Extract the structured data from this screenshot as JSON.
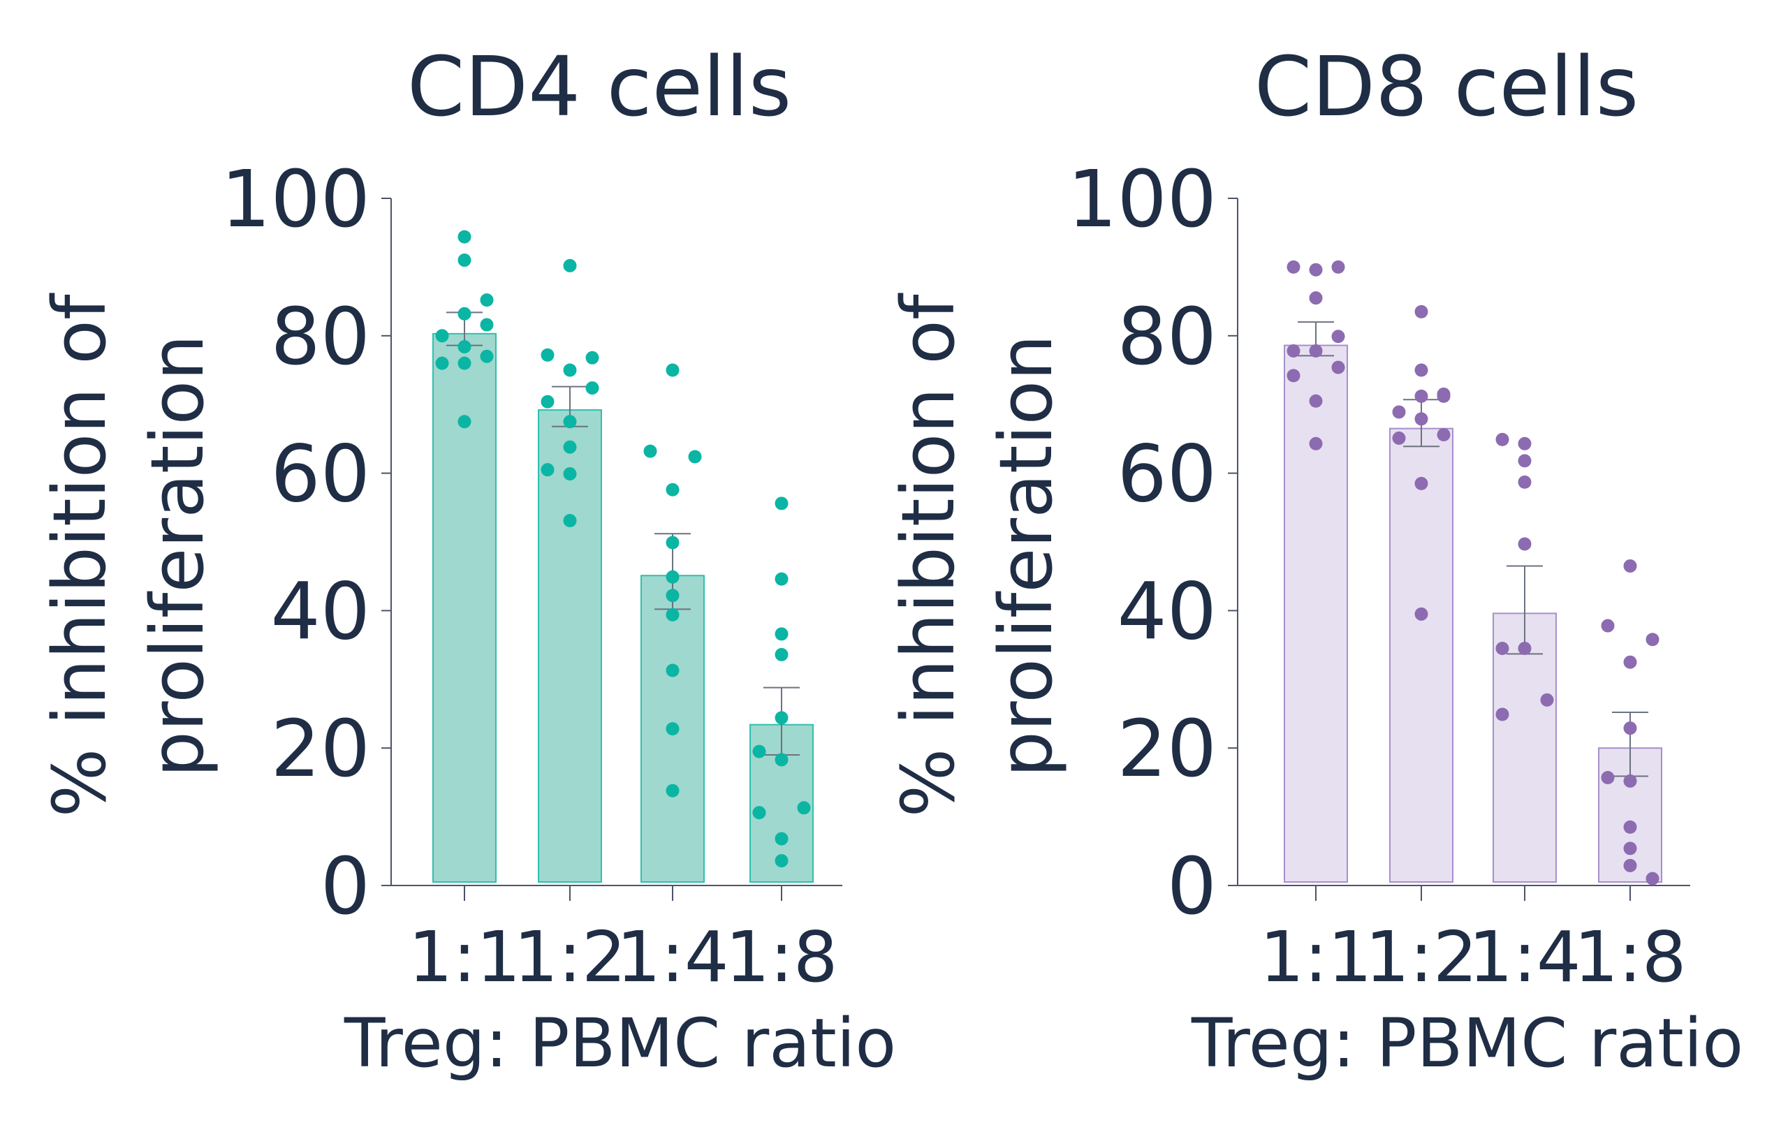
{
  "chart_data": [
    {
      "type": "bar",
      "title": "CD4 cells",
      "xlabel": "Treg: PBMC ratio",
      "ylabel_lines": [
        "% inhibition of",
        "proliferation"
      ],
      "ylim": [
        0,
        100
      ],
      "yticks": [
        0,
        20,
        40,
        60,
        80,
        100
      ],
      "categories": [
        "1:1",
        "1:2",
        "1:4",
        "1:8"
      ],
      "values": [
        80.3,
        69.2,
        45.1,
        23.4
      ],
      "error_low": [
        78.6,
        66.8,
        40.2,
        19.0
      ],
      "error_high": [
        83.4,
        72.6,
        51.2,
        28.8
      ],
      "points": [
        [
          94.4,
          91.0,
          85.2,
          83.2,
          81.6,
          80.0,
          78.4,
          77.0,
          76.0,
          76.0,
          67.5
        ],
        [
          90.2,
          77.2,
          76.8,
          75.0,
          72.4,
          70.4,
          67.5,
          63.8,
          60.5,
          59.9,
          53.1
        ],
        [
          75.0,
          63.2,
          62.4,
          57.6,
          49.9,
          44.9,
          42.2,
          39.4,
          31.3,
          22.8,
          13.8
        ],
        [
          55.6,
          44.6,
          36.6,
          33.6,
          24.4,
          19.5,
          18.3,
          11.3,
          10.6,
          6.8,
          3.6
        ]
      ],
      "colors": {
        "point": "#0bb5a4",
        "bar_fill": "#9fd8ce",
        "bar_stroke": "#2fc0ae"
      }
    },
    {
      "type": "bar",
      "title": "CD8 cells",
      "xlabel": "Treg: PBMC ratio",
      "ylabel_lines": [
        "% inhibition of",
        "proliferation"
      ],
      "ylim": [
        0,
        100
      ],
      "yticks": [
        0,
        20,
        40,
        60,
        80,
        100
      ],
      "categories": [
        "1:1",
        "1:2",
        "1:4",
        "1:8"
      ],
      "values": [
        78.6,
        66.5,
        39.6,
        20.0
      ],
      "error_low": [
        77.1,
        63.9,
        33.7,
        15.9
      ],
      "error_high": [
        82.0,
        70.7,
        46.5,
        25.2
      ],
      "points": [
        [
          89.6,
          90.0,
          90.0,
          85.5,
          79.9,
          77.8,
          77.8,
          75.4,
          74.2,
          70.5,
          64.3
        ],
        [
          83.5,
          75.0,
          71.5,
          71.2,
          71.2,
          68.9,
          67.9,
          65.6,
          65.1,
          58.5,
          39.5
        ],
        [
          64.3,
          64.9,
          61.8,
          58.7,
          49.7,
          34.5,
          34.5,
          27.0,
          24.9
        ],
        [
          46.5,
          37.8,
          35.8,
          32.5,
          22.9,
          15.7,
          15.2,
          8.5,
          5.4,
          2.9,
          1.0
        ]
      ],
      "colors": {
        "point": "#8c6bb1",
        "bar_fill": "#e7e0f0",
        "bar_stroke": "#a88fcb"
      }
    }
  ]
}
